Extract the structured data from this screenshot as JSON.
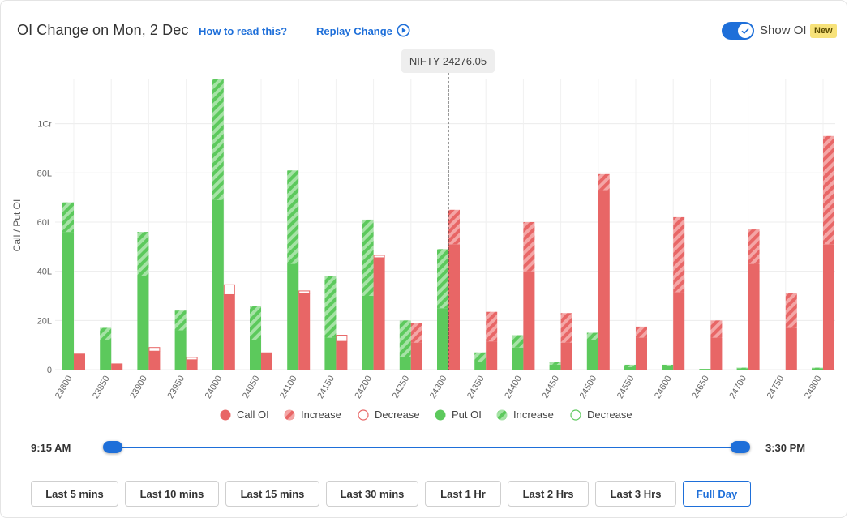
{
  "header": {
    "title": "OI Change on Mon, 2 Dec",
    "how_to_read": "How to read this?",
    "replay": "Replay Change",
    "show_oi": "Show OI",
    "new_badge": "New"
  },
  "tooltip": "NIFTY 24276.05",
  "legend": [
    {
      "label": "Call OI",
      "style": "call-solid"
    },
    {
      "label": "Increase",
      "style": "call-hatch"
    },
    {
      "label": "Decrease",
      "style": "call-outline"
    },
    {
      "label": "Put OI",
      "style": "put-solid"
    },
    {
      "label": "Increase",
      "style": "put-hatch"
    },
    {
      "label": "Decrease",
      "style": "put-outline"
    }
  ],
  "slider": {
    "start": "9:15 AM",
    "end": "3:30 PM"
  },
  "range_buttons": [
    {
      "label": "Last 5 mins",
      "active": false
    },
    {
      "label": "Last 10 mins",
      "active": false
    },
    {
      "label": "Last 15 mins",
      "active": false
    },
    {
      "label": "Last 30 mins",
      "active": false
    },
    {
      "label": "Last 1 Hr",
      "active": false
    },
    {
      "label": "Last 2 Hrs",
      "active": false
    },
    {
      "label": "Last 3 Hrs",
      "active": false
    },
    {
      "label": "Full Day",
      "active": true
    }
  ],
  "colors": {
    "call": "#e86666",
    "call_light": "#f4a6a6",
    "put": "#5cc95c",
    "put_light": "#a6e3a6",
    "accent": "#1e6fd9"
  },
  "chart_data": {
    "type": "bar",
    "ylabel": "Call / Put OI",
    "xlabel": "",
    "units": "lakh",
    "ylim": [
      0,
      118
    ],
    "yticks": [
      0,
      20,
      40,
      60,
      80,
      100
    ],
    "ytick_labels": [
      "0",
      "20L",
      "40L",
      "60L",
      "80L",
      "1Cr"
    ],
    "spot_strike": "24300",
    "categories": [
      "23800",
      "23850",
      "23900",
      "23950",
      "24000",
      "24050",
      "24100",
      "24150",
      "24200",
      "24250",
      "24300",
      "24350",
      "24400",
      "24450",
      "24500",
      "24550",
      "24600",
      "24650",
      "24700",
      "24750",
      "24800"
    ],
    "series": [
      {
        "name": "Put OI",
        "base": [
          56,
          12,
          38,
          16,
          69,
          12,
          43,
          13,
          30,
          5,
          25,
          3,
          9,
          2,
          12,
          1,
          1.5,
          0.3,
          0.5,
          0,
          0.5
        ],
        "increase": [
          12,
          5,
          18,
          8,
          49,
          14,
          38,
          25,
          31,
          15,
          24,
          4,
          5,
          1,
          3,
          1,
          0.5,
          0,
          0.3,
          0,
          0.3
        ],
        "decrease": [
          0,
          0,
          0,
          0,
          0,
          0,
          0,
          0,
          0,
          0,
          0,
          0,
          0,
          0,
          0,
          0,
          0,
          0,
          0,
          0,
          0
        ]
      },
      {
        "name": "Call OI",
        "base": [
          6.5,
          2.5,
          7.5,
          4,
          30.5,
          7,
          31,
          11.5,
          45.5,
          11,
          51,
          11.5,
          40,
          11,
          73,
          13,
          31.5,
          13,
          43,
          17,
          51
        ],
        "increase": [
          0,
          0,
          0,
          0,
          0,
          0,
          0,
          0,
          0,
          8,
          14,
          12,
          20,
          12,
          6.5,
          4.5,
          30.5,
          7,
          14,
          14,
          44
        ],
        "decrease": [
          0,
          0,
          1.5,
          1,
          4,
          0,
          1,
          2.5,
          1,
          0,
          0,
          0,
          0,
          0,
          0,
          0,
          0,
          0,
          0,
          0,
          0
        ]
      }
    ],
    "grid": true,
    "legend_position": "bottom"
  }
}
